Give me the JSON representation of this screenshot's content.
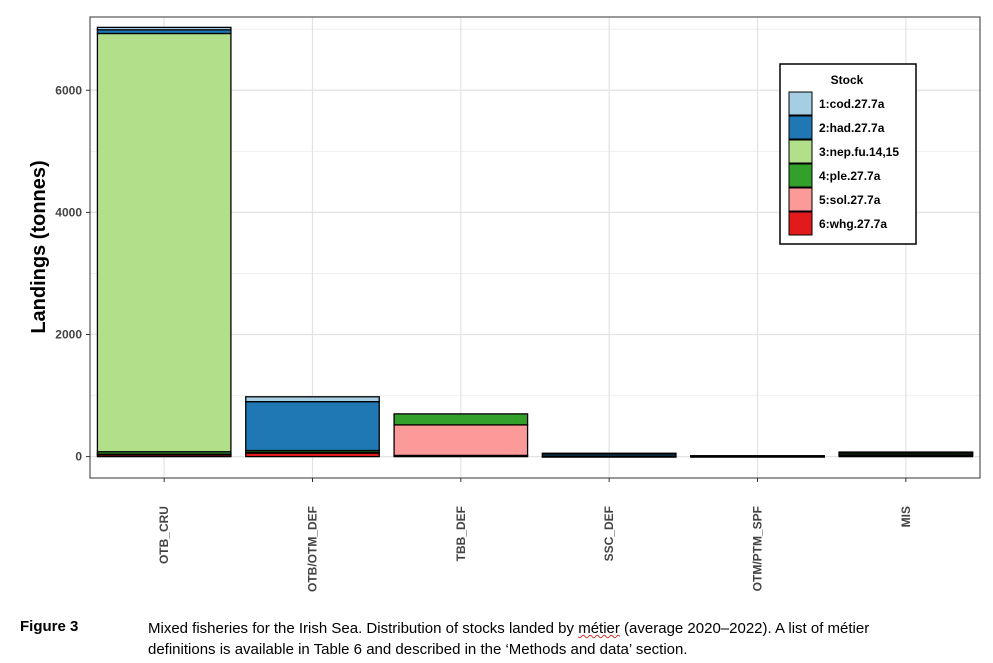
{
  "chart_data": {
    "type": "bar",
    "stacked": true,
    "categories": [
      "OTB_CRU",
      "OTB/OTM_DEF",
      "TBB_DEF",
      "SSC_DEF",
      "OTM/PTM_SPF",
      "MIS"
    ],
    "ylabel": "Landings (tonnes)",
    "xlabel": "",
    "ylim": [
      -350,
      7200
    ],
    "yticks": [
      0,
      2000,
      4000,
      6000
    ],
    "grid": true,
    "legend": {
      "title": "Stock",
      "placement": "top-right inside plot"
    },
    "series": [
      {
        "name": "1:cod.27.7a",
        "color": "#a6cee3",
        "values": [
          40,
          80,
          0,
          5,
          0,
          5
        ]
      },
      {
        "name": "2:had.27.7a",
        "color": "#1f78b4",
        "values": [
          60,
          800,
          0,
          40,
          5,
          10
        ]
      },
      {
        "name": "3:nep.fu.14,15",
        "color": "#b2df8a",
        "values": [
          6850,
          0,
          0,
          0,
          0,
          0
        ]
      },
      {
        "name": "4:ple.27.7a",
        "color": "#33a02c",
        "values": [
          40,
          30,
          180,
          5,
          5,
          30
        ]
      },
      {
        "name": "5:sol.27.7a",
        "color": "#fb9a99",
        "values": [
          10,
          10,
          500,
          0,
          0,
          10
        ]
      },
      {
        "name": "6:whg.27.7a",
        "color": "#e31a1c",
        "values": [
          30,
          60,
          20,
          5,
          5,
          20
        ]
      }
    ]
  },
  "caption": {
    "label": "Figure 3",
    "text_before": "Mixed fisheries for the Irish Sea. Distribution of stocks landed by ",
    "underlined_word": "métier",
    "text_after": " (average 2020–2022). A list of métier definitions is available in Table 6 and described in the ‘Methods and data’ section."
  }
}
